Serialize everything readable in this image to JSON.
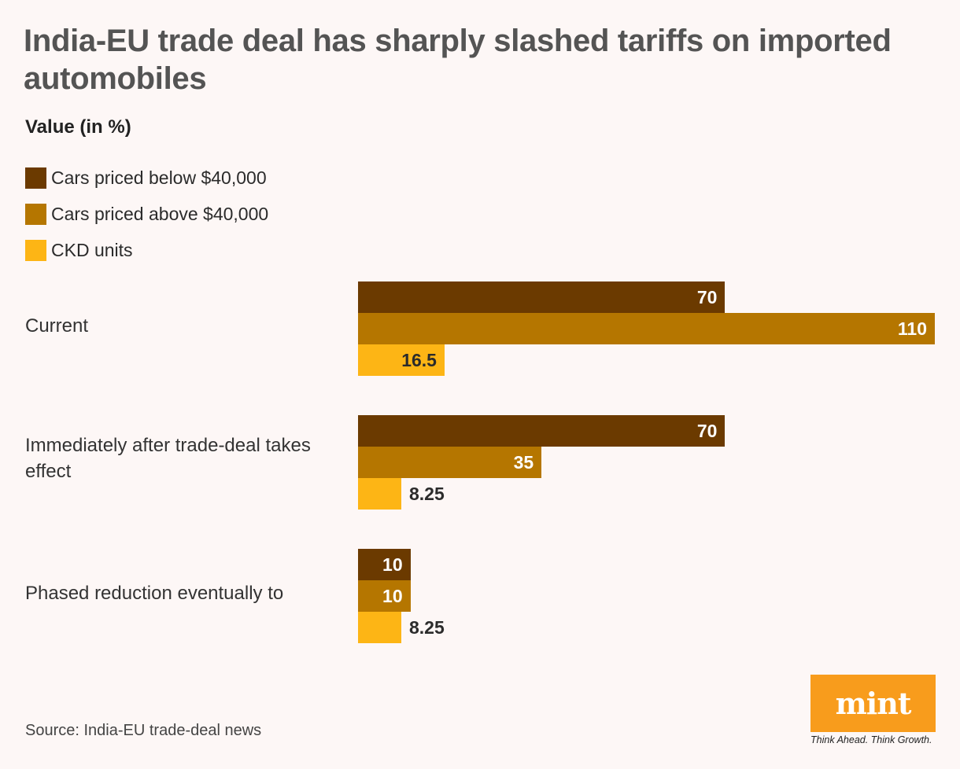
{
  "chart_data": {
    "type": "bar",
    "orientation": "horizontal",
    "title": "India-EU trade deal has sharply slashed tariffs on imported automobiles",
    "subtitle": "Value (in %)",
    "categories": [
      "Current",
      "Immediately after trade-deal takes effect",
      "Phased reduction eventually to"
    ],
    "series": [
      {
        "name": "Cars priced below $40,000",
        "color": "#6b3a00",
        "label_color": "#ffffff",
        "values": [
          70,
          70,
          10
        ]
      },
      {
        "name": "Cars priced above $40,000",
        "color": "#b57600",
        "label_color": "#ffffff",
        "values": [
          110,
          35,
          10
        ]
      },
      {
        "name": "CKD units",
        "color": "#fdb515",
        "label_color": "#2b2b2b",
        "values": [
          16.5,
          8.25,
          8.25
        ]
      }
    ],
    "value_labels": [
      [
        "70",
        "70",
        "10"
      ],
      [
        "110",
        "35",
        "10"
      ],
      [
        "16.5",
        "8.25",
        "8.25"
      ]
    ],
    "xlim": [
      0,
      110
    ],
    "grid": false,
    "legend": "top-left"
  },
  "source": "Source: India-EU trade-deal news",
  "logo": {
    "text": "mint",
    "tagline": "Think Ahead. Think Growth.",
    "color": "#f89c1c"
  }
}
